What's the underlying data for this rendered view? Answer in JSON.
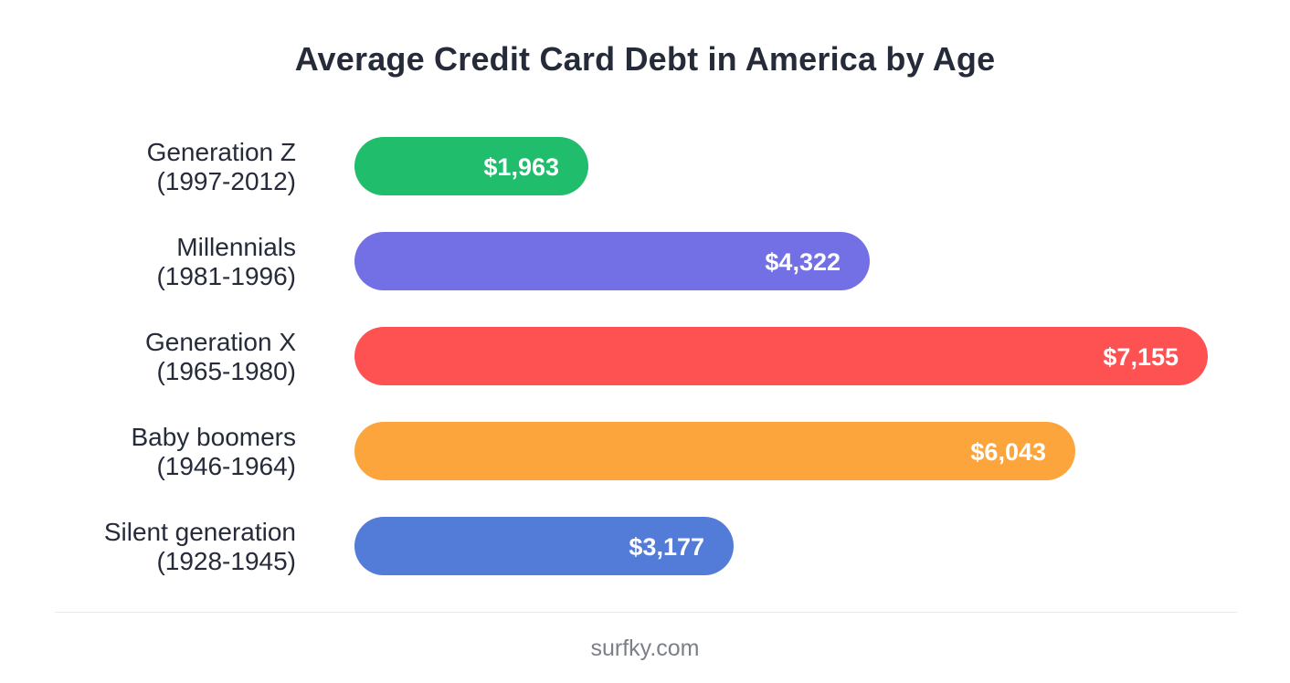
{
  "chart_data": {
    "type": "bar",
    "orientation": "horizontal",
    "title": "Average Credit Card Debt in America by Age",
    "xlabel": "",
    "ylabel": "",
    "grid": false,
    "categories": [
      {
        "name": "Generation Z",
        "years": "(1997-2012)"
      },
      {
        "name": "Millennials",
        "years": "(1981-1996)"
      },
      {
        "name": "Generation X",
        "years": "(1965-1980)"
      },
      {
        "name": "Baby boomers",
        "years": "(1946-1964)"
      },
      {
        "name": "Silent generation",
        "years": "(1928-1945)"
      }
    ],
    "values": [
      1963,
      4322,
      7155,
      6043,
      3177
    ],
    "value_labels": [
      "$1,963",
      "$4,322",
      "$7,155",
      "$6,043",
      "$3,177"
    ],
    "colors": [
      "#1fbd6c",
      "#7370e6",
      "#fe5152",
      "#fca53c",
      "#537cd8"
    ],
    "xlim": [
      0,
      7155
    ]
  },
  "footer": {
    "source": "surfky.com"
  }
}
